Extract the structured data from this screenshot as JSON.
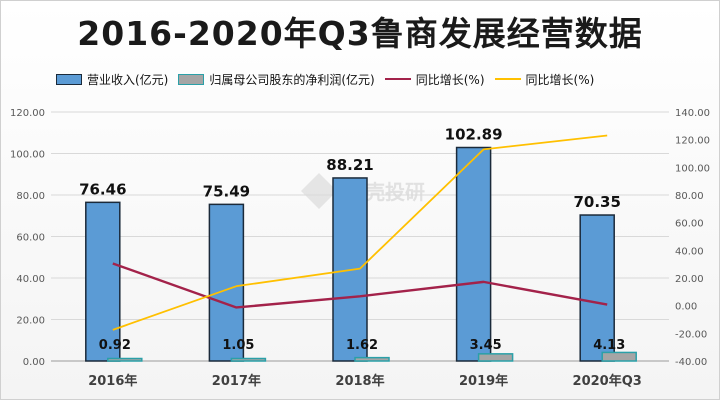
{
  "chart_data": {
    "type": "bar",
    "title": "2016-2020年Q3鲁商发展经营数据",
    "categories": [
      "2016年",
      "2017年",
      "2018年",
      "2019年",
      "2020年Q3"
    ],
    "series": [
      {
        "name": "营业收入(亿元)",
        "kind": "bar",
        "axis": "left",
        "color": "#5b9bd5",
        "values": [
          76.46,
          75.49,
          88.21,
          102.89,
          70.35
        ]
      },
      {
        "name": "归属母公司股东的净利润(亿元)",
        "kind": "bar",
        "axis": "left",
        "color": "#a5a5a5",
        "values": [
          0.92,
          1.05,
          1.62,
          3.45,
          4.13
        ]
      },
      {
        "name": "同比增长(%)",
        "kind": "line",
        "axis": "right",
        "color": "#a3224a",
        "values": [
          30.5,
          -1.3,
          6.8,
          17.2,
          0.8
        ]
      },
      {
        "name": "同比增长(%)",
        "kind": "line",
        "axis": "right",
        "color": "#ffc000",
        "values": [
          -17.5,
          14.1,
          26.8,
          113.0,
          123.0
        ]
      }
    ],
    "y_left": {
      "min": 0,
      "max": 120,
      "step": 20,
      "ticks": [
        "0.00",
        "20.00",
        "40.00",
        "60.00",
        "80.00",
        "100.00",
        "120.00"
      ]
    },
    "y_right": {
      "min": -40,
      "max": 140,
      "step": 20,
      "ticks": [
        "-40.00",
        "-20.00",
        "0.00",
        "20.00",
        "40.00",
        "60.00",
        "80.00",
        "100.00",
        "120.00",
        "140.00"
      ]
    },
    "grid": true,
    "legend_position": "top",
    "data_labels": {
      "revenue": [
        "76.46",
        "75.49",
        "88.21",
        "102.89",
        "70.35"
      ],
      "profit": [
        "0.92",
        "1.05",
        "1.62",
        "3.45",
        "4.13"
      ]
    },
    "watermark": "贝壳投研"
  }
}
